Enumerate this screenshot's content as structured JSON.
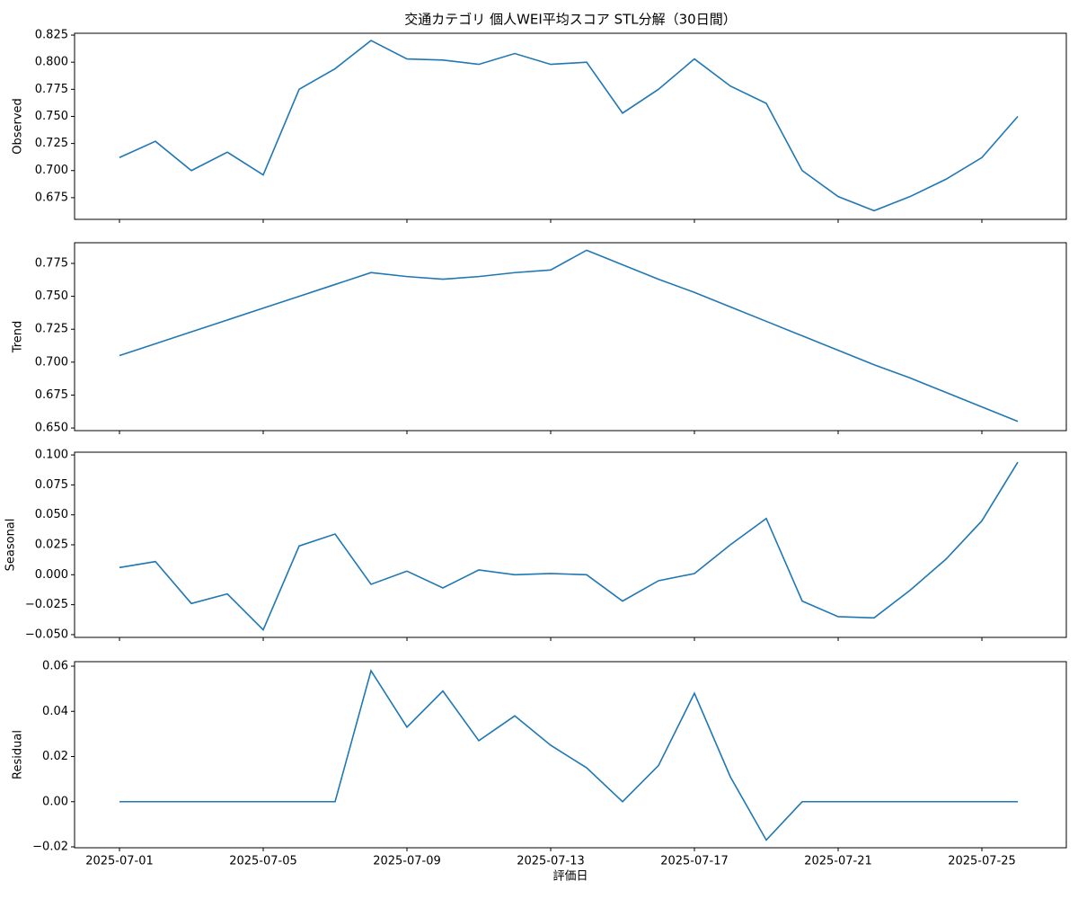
{
  "chart_data": [
    {
      "type": "line",
      "title": "交通カテゴリ 個人WEI平均スコア STL分解（30日間）",
      "ylabel": "Observed",
      "x": [
        "2025-07-01",
        "2025-07-02",
        "2025-07-03",
        "2025-07-04",
        "2025-07-05",
        "2025-07-06",
        "2025-07-07",
        "2025-07-08",
        "2025-07-09",
        "2025-07-10",
        "2025-07-11",
        "2025-07-12",
        "2025-07-13",
        "2025-07-14",
        "2025-07-15",
        "2025-07-16",
        "2025-07-17",
        "2025-07-18",
        "2025-07-19",
        "2025-07-20",
        "2025-07-21",
        "2025-07-22",
        "2025-07-23",
        "2025-07-24",
        "2025-07-25",
        "2025-07-26"
      ],
      "series": [
        {
          "color": "#1f77b4",
          "values": [
            0.712,
            0.727,
            0.7,
            0.717,
            0.696,
            0.775,
            0.794,
            0.82,
            0.803,
            0.802,
            0.798,
            0.808,
            0.798,
            0.8,
            0.753,
            0.775,
            0.803,
            0.778,
            0.762,
            0.7,
            0.676,
            0.663,
            0.676,
            0.692,
            0.712,
            0.75
          ]
        }
      ],
      "ylim": [
        0.655,
        0.8267
      ],
      "yticks": [
        {
          "value": 0.675,
          "label": "0.675"
        },
        {
          "value": 0.7,
          "label": "0.700"
        },
        {
          "value": 0.725,
          "label": "0.725"
        },
        {
          "value": 0.75,
          "label": "0.750"
        },
        {
          "value": 0.775,
          "label": "0.775"
        },
        {
          "value": 0.8,
          "label": "0.800"
        },
        {
          "value": 0.825,
          "label": "0.825"
        }
      ],
      "xticks": [
        "2025-07-01",
        "2025-07-05",
        "2025-07-09",
        "2025-07-13",
        "2025-07-17",
        "2025-07-21",
        "2025-07-25"
      ]
    },
    {
      "type": "line",
      "ylabel": "Trend",
      "x": [
        "2025-07-01",
        "2025-07-02",
        "2025-07-03",
        "2025-07-04",
        "2025-07-05",
        "2025-07-06",
        "2025-07-07",
        "2025-07-08",
        "2025-07-09",
        "2025-07-10",
        "2025-07-11",
        "2025-07-12",
        "2025-07-13",
        "2025-07-14",
        "2025-07-15",
        "2025-07-16",
        "2025-07-17",
        "2025-07-18",
        "2025-07-19",
        "2025-07-20",
        "2025-07-21",
        "2025-07-22",
        "2025-07-23",
        "2025-07-24",
        "2025-07-25",
        "2025-07-26"
      ],
      "series": [
        {
          "color": "#1f77b4",
          "values": [
            0.705,
            0.714,
            0.723,
            0.732,
            0.741,
            0.75,
            0.759,
            0.768,
            0.765,
            0.763,
            0.765,
            0.768,
            0.77,
            0.785,
            0.774,
            0.763,
            0.753,
            0.742,
            0.731,
            0.72,
            0.709,
            0.698,
            0.688,
            0.677,
            0.666,
            0.655
          ]
        }
      ],
      "ylim": [
        0.648,
        0.7907
      ],
      "yticks": [
        {
          "value": 0.65,
          "label": "0.650"
        },
        {
          "value": 0.675,
          "label": "0.675"
        },
        {
          "value": 0.7,
          "label": "0.700"
        },
        {
          "value": 0.725,
          "label": "0.725"
        },
        {
          "value": 0.75,
          "label": "0.750"
        },
        {
          "value": 0.775,
          "label": "0.775"
        }
      ],
      "xticks": [
        "2025-07-01",
        "2025-07-05",
        "2025-07-09",
        "2025-07-13",
        "2025-07-17",
        "2025-07-21",
        "2025-07-25"
      ]
    },
    {
      "type": "line",
      "ylabel": "Seasonal",
      "x": [
        "2025-07-01",
        "2025-07-02",
        "2025-07-03",
        "2025-07-04",
        "2025-07-05",
        "2025-07-06",
        "2025-07-07",
        "2025-07-08",
        "2025-07-09",
        "2025-07-10",
        "2025-07-11",
        "2025-07-12",
        "2025-07-13",
        "2025-07-14",
        "2025-07-15",
        "2025-07-16",
        "2025-07-17",
        "2025-07-18",
        "2025-07-19",
        "2025-07-20",
        "2025-07-21",
        "2025-07-22",
        "2025-07-23",
        "2025-07-24",
        "2025-07-25",
        "2025-07-26"
      ],
      "series": [
        {
          "color": "#1f77b4",
          "values": [
            0.006,
            0.011,
            -0.024,
            -0.016,
            -0.046,
            0.024,
            0.034,
            -0.008,
            0.003,
            -0.011,
            0.004,
            0.0,
            0.001,
            0.0,
            -0.022,
            -0.005,
            0.001,
            0.025,
            0.047,
            -0.022,
            -0.035,
            -0.036,
            -0.013,
            0.013,
            0.045,
            0.094
          ]
        }
      ],
      "ylim": [
        -0.0523,
        0.1023
      ],
      "yticks": [
        {
          "value": -0.05,
          "label": "−0.050"
        },
        {
          "value": -0.025,
          "label": "−0.025"
        },
        {
          "value": 0,
          "label": "0.000"
        },
        {
          "value": 0.025,
          "label": "0.025"
        },
        {
          "value": 0.05,
          "label": "0.050"
        },
        {
          "value": 0.075,
          "label": "0.075"
        },
        {
          "value": 0.1,
          "label": "0.100"
        }
      ],
      "xticks": [
        "2025-07-01",
        "2025-07-05",
        "2025-07-09",
        "2025-07-13",
        "2025-07-17",
        "2025-07-21",
        "2025-07-25"
      ]
    },
    {
      "type": "line",
      "ylabel": "Residual",
      "xlabel": "評価日",
      "x": [
        "2025-07-01",
        "2025-07-02",
        "2025-07-03",
        "2025-07-04",
        "2025-07-05",
        "2025-07-06",
        "2025-07-07",
        "2025-07-08",
        "2025-07-09",
        "2025-07-10",
        "2025-07-11",
        "2025-07-12",
        "2025-07-13",
        "2025-07-14",
        "2025-07-15",
        "2025-07-16",
        "2025-07-17",
        "2025-07-18",
        "2025-07-19",
        "2025-07-20",
        "2025-07-21",
        "2025-07-22",
        "2025-07-23",
        "2025-07-24",
        "2025-07-25",
        "2025-07-26"
      ],
      "series": [
        {
          "color": "#1f77b4",
          "values": [
            0,
            0,
            0,
            0,
            0,
            0,
            0,
            0.058,
            0.033,
            0.049,
            0.027,
            0.038,
            0.025,
            0.015,
            0,
            0.016,
            0.048,
            0.011,
            -0.017,
            0,
            0,
            0,
            0,
            0,
            0,
            0
          ]
        }
      ],
      "ylim": [
        -0.0204,
        0.062
      ],
      "yticks": [
        {
          "value": -0.02,
          "label": "−0.02"
        },
        {
          "value": 0,
          "label": "0.00"
        },
        {
          "value": 0.02,
          "label": "0.02"
        },
        {
          "value": 0.04,
          "label": "0.04"
        },
        {
          "value": 0.06,
          "label": "0.06"
        }
      ],
      "xticks": [
        "2025-07-01",
        "2025-07-05",
        "2025-07-09",
        "2025-07-13",
        "2025-07-17",
        "2025-07-21",
        "2025-07-25"
      ]
    }
  ]
}
